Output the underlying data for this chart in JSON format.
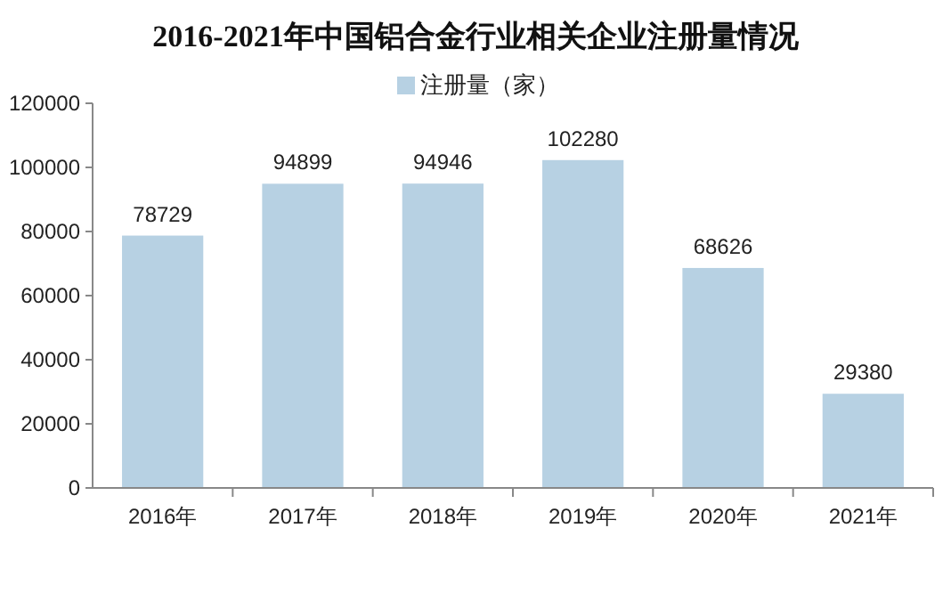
{
  "chart_data": {
    "type": "bar",
    "title": "2016-2021年中国铝合金行业相关企业注册量情况",
    "categories": [
      "2016年",
      "2017年",
      "2018年",
      "2019年",
      "2020年",
      "2021年"
    ],
    "series": [
      {
        "name": "注册量（家）",
        "color": "#b7d1e3",
        "values": [
          78729,
          94899,
          94946,
          102280,
          68626,
          29380
        ]
      }
    ],
    "ylim": [
      0,
      120000
    ],
    "yticks": [
      0,
      20000,
      40000,
      60000,
      80000,
      100000,
      120000
    ],
    "data_labels": true,
    "legend": "top",
    "grid": false
  }
}
